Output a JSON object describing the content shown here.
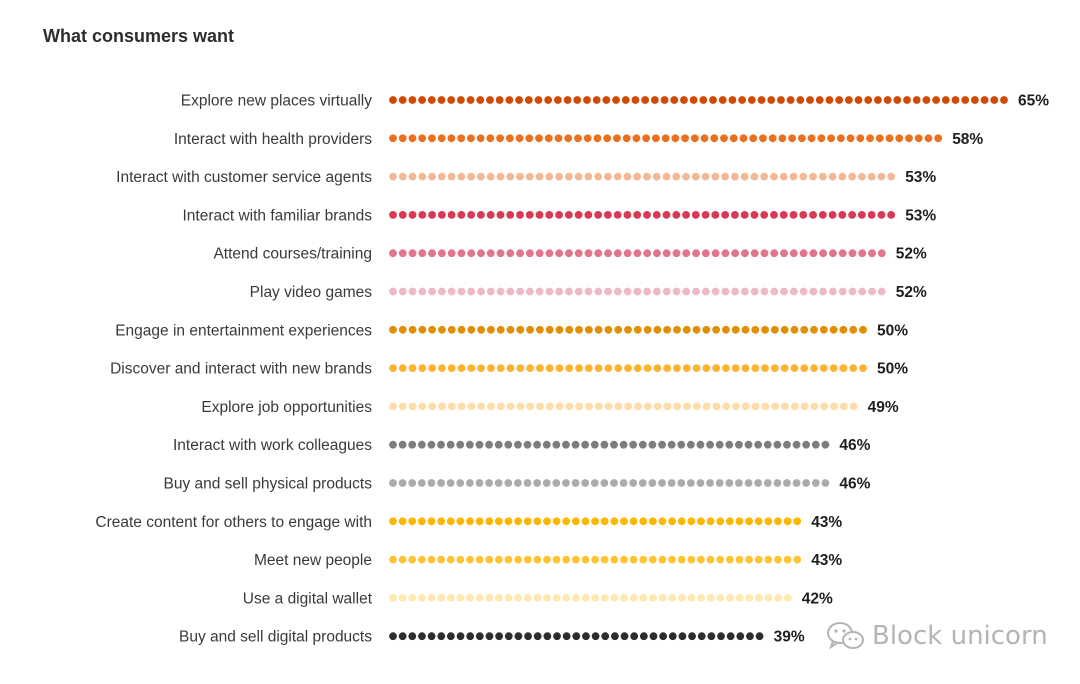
{
  "title": "What consumers want",
  "watermark": {
    "text": "Block unicorn",
    "icon": "wechat-icon"
  },
  "chart_data": {
    "type": "bar",
    "style": "dotted horizontal bars",
    "title": "What consumers want",
    "xlabel": "",
    "ylabel": "",
    "xlim": [
      0,
      65
    ],
    "grid": false,
    "value_suffix": "%",
    "categories": [
      "Explore new places virtually",
      "Interact with health providers",
      "Interact with customer service agents",
      "Interact with familiar brands",
      "Attend courses/training",
      "Play video games",
      "Engage in entertainment experiences",
      "Discover and interact with new brands",
      "Explore job opportunities",
      "Interact with work colleagues",
      "Buy and sell physical products",
      "Create content for others to engage with",
      "Meet new people",
      "Use a digital wallet",
      "Buy and sell digital products"
    ],
    "values": [
      65,
      58,
      53,
      53,
      52,
      52,
      50,
      50,
      49,
      46,
      46,
      43,
      43,
      42,
      39
    ],
    "colors": [
      "#d04a02",
      "#eb6f1c",
      "#f5b896",
      "#d93954",
      "#e0758c",
      "#eeb8c6",
      "#e28e00",
      "#ffb22e",
      "#ffdca8",
      "#7d7d7d",
      "#ababab",
      "#ffb600",
      "#ffc434",
      "#ffe9b0",
      "#2d2d2d"
    ]
  }
}
